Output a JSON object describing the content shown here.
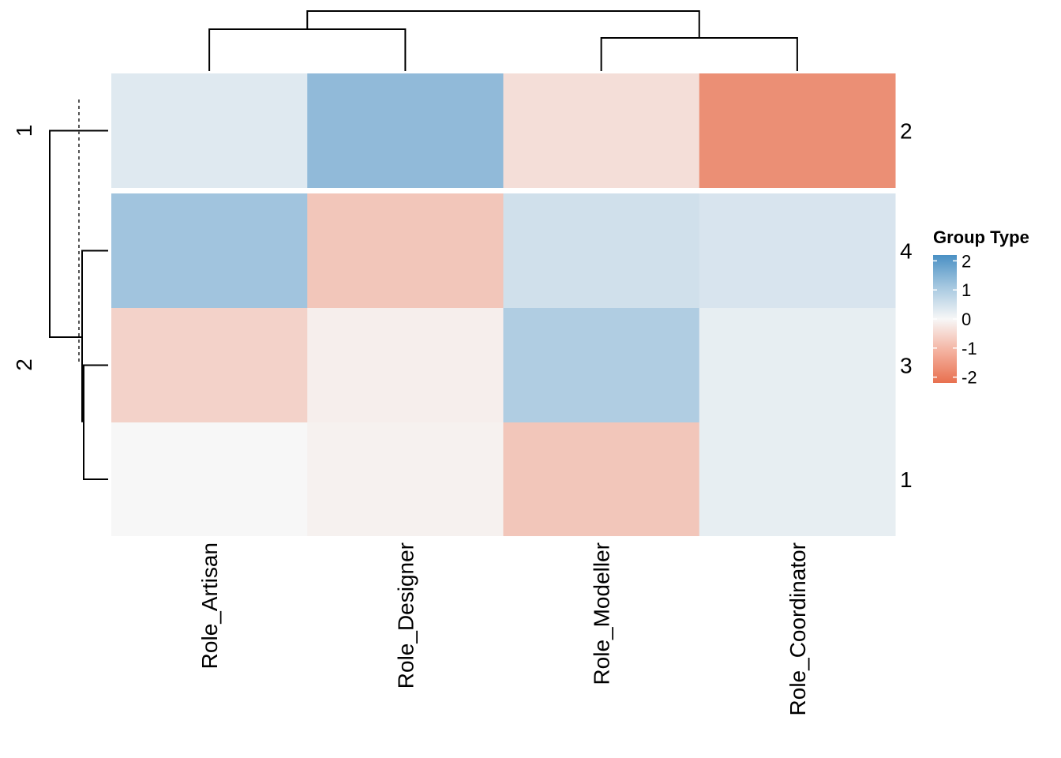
{
  "chart_data": {
    "type": "heatmap",
    "columns": [
      "Role_Artisan",
      "Role_Designer",
      "Role_Modeller",
      "Role_Coordinator"
    ],
    "row_groups": [
      {
        "label": "1",
        "rows": [
          "2"
        ]
      },
      {
        "label": "2",
        "rows": [
          "4",
          "3",
          "1"
        ]
      }
    ],
    "rows": [
      "2",
      "4",
      "3",
      "1"
    ],
    "values": [
      [
        0.3,
        1.3,
        -0.4,
        -1.7
      ],
      [
        1.1,
        -0.8,
        0.5,
        0.4
      ],
      [
        -0.6,
        -0.15,
        0.9,
        0.2
      ],
      [
        0.0,
        -0.1,
        -0.8,
        0.2
      ]
    ],
    "legend": {
      "title": "Group Type",
      "ticks": [
        2,
        1,
        0,
        -1,
        -2
      ],
      "range": [
        -2.2,
        2.2
      ]
    },
    "colors": {
      "high": "#4a90c4",
      "mid": "#f7f7f7",
      "low": "#e8704f"
    },
    "column_dendrogram": true,
    "row_dendrogram": true
  }
}
